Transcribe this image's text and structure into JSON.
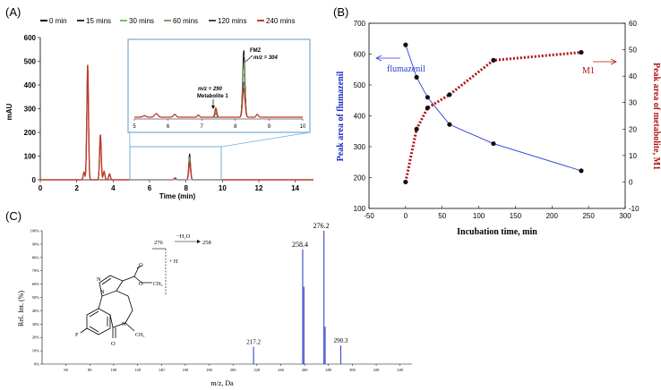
{
  "panels": {
    "a": "(A)",
    "b": "(B)",
    "c": "(C)"
  },
  "chart_data": [
    {
      "type": "line",
      "panel": "(A)",
      "legend": [
        "0 min",
        "15 mins",
        "30 mins",
        "60 mins",
        "120 mins",
        "240 mins"
      ],
      "colors": [
        "#000000",
        "#1f3a1f",
        "#7cbb5c",
        "#8a9a6a",
        "#4a4a4a",
        "#c0392b"
      ],
      "xlabel": "Time (min)",
      "ylabel": "mAU",
      "xlim": [
        0,
        15
      ],
      "ylim": [
        0,
        600
      ],
      "xticks": [
        "0",
        "2",
        "4",
        "6",
        "8",
        "10",
        "12",
        "14"
      ],
      "yticks": [
        "0",
        "100",
        "200",
        "300",
        "400",
        "500",
        "600"
      ],
      "peaks": [
        {
          "rt": 2.4,
          "height": 32
        },
        {
          "rt": 2.6,
          "height": 485
        },
        {
          "rt": 3.3,
          "height": 190
        },
        {
          "rt": 3.5,
          "height": 35
        },
        {
          "rt": 3.8,
          "height": 25
        },
        {
          "rt": 7.4,
          "height": 8
        },
        {
          "rt": 8.2,
          "height": 110
        }
      ],
      "inset": {
        "xticks": [
          "5",
          "6",
          "7",
          "8",
          "9",
          "10"
        ],
        "xlim": [
          5,
          10
        ],
        "fmz_label": "FMZ",
        "fmz_mz": "m/z = 304",
        "met_mz": "m/z = 290",
        "met_label": "Metabolite 1",
        "fmz_heights": [
          0.95,
          0.85,
          0.72,
          0.62,
          0.5,
          0.4
        ],
        "met_heights": [
          0.0,
          0.05,
          0.07,
          0.09,
          0.11,
          0.13
        ]
      }
    },
    {
      "type": "line",
      "panel": "(B)",
      "xlabel": "Incubation time, min",
      "ylabel_left": "Peak area of flumazenil",
      "ylabel_right": "Peak area of metabolite, M1",
      "xlim": [
        -50,
        300
      ],
      "ylim_left": [
        100,
        700
      ],
      "ylim_right": [
        -10,
        60
      ],
      "xticks": [
        "-50",
        "0",
        "50",
        "100",
        "150",
        "200",
        "250",
        "300"
      ],
      "yticks_left": [
        "100",
        "200",
        "300",
        "400",
        "500",
        "600",
        "700"
      ],
      "yticks_right": [
        "-10",
        "0",
        "10",
        "20",
        "30",
        "40",
        "50",
        "60"
      ],
      "series": [
        {
          "name": "flumazenil",
          "color": "#2b3bd6",
          "x": [
            0,
            15,
            30,
            60,
            120,
            240
          ],
          "y": [
            630,
            525,
            460,
            372,
            310,
            222
          ]
        },
        {
          "name": "M1",
          "color": "#b01010",
          "x": [
            0,
            15,
            30,
            60,
            120,
            240
          ],
          "y": [
            0,
            20,
            28,
            33,
            46,
            49
          ]
        }
      ]
    },
    {
      "type": "bar",
      "panel": "(C)",
      "xlabel": "m/z, Da",
      "ylabel": "Rel. Int. (%)",
      "xlim": [
        40,
        350
      ],
      "xticks": [
        "60",
        "80",
        "100",
        "120",
        "140",
        "160",
        "180",
        "200",
        "220",
        "240",
        "260",
        "280",
        "300",
        "320",
        "340"
      ],
      "yticks": [
        "0%",
        "10%",
        "20%",
        "30%",
        "40%",
        "50%",
        "60%",
        "70%",
        "80%",
        "90%",
        "100%"
      ],
      "x": [
        217.2,
        258.4,
        259.4,
        276.2,
        277.2,
        290.3
      ],
      "values": [
        13,
        86,
        58,
        100,
        28,
        14
      ],
      "labels": [
        "217.2",
        "258.4",
        "",
        "276.2",
        "",
        "290.3"
      ],
      "scheme": {
        "from": "276",
        "loss": "−H₂O",
        "to": "258",
        "plus_h": "+ H",
        "f": "F",
        "n": "N",
        "o": "O",
        "ch3": "CH₃"
      }
    }
  ]
}
